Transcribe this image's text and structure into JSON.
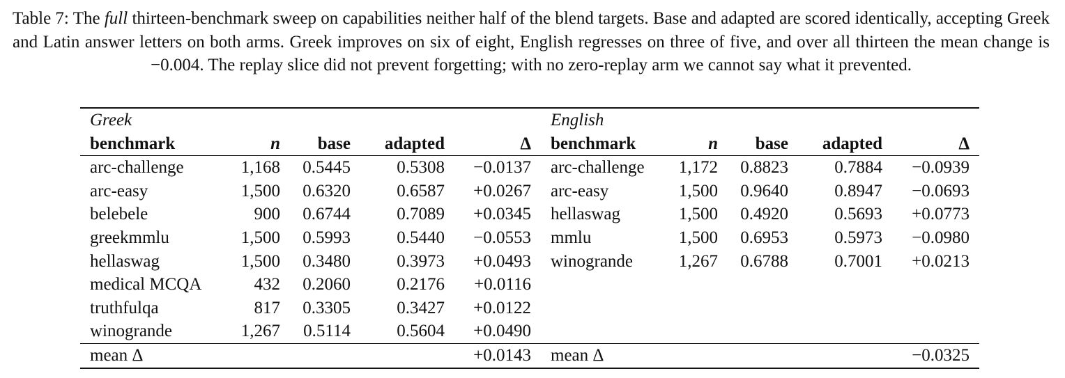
{
  "caption": {
    "before": "Table 7: The ",
    "emph": "full",
    "after": " thirteen-benchmark sweep on capabilities neither half of the blend targets. Base and adapted are scored identically, accepting Greek and Latin answer letters on both arms. Greek improves on six of eight, English regresses on three of five, and over all thirteen the mean change is −0.004. The replay slice did not prevent forgetting; with no zero-replay arm we cannot say what it prevented."
  },
  "table": {
    "greek": {
      "label": "Greek",
      "headers": [
        "benchmark",
        "n",
        "base",
        "adapted",
        "Δ"
      ],
      "rows": [
        [
          "arc-challenge",
          "1,168",
          "0.5445",
          "0.5308",
          "−0.0137"
        ],
        [
          "arc-easy",
          "1,500",
          "0.6320",
          "0.6587",
          "+0.0267"
        ],
        [
          "belebele",
          "900",
          "0.6744",
          "0.7089",
          "+0.0345"
        ],
        [
          "greekmmlu",
          "1,500",
          "0.5993",
          "0.5440",
          "−0.0553"
        ],
        [
          "hellaswag",
          "1,500",
          "0.3480",
          "0.3973",
          "+0.0493"
        ],
        [
          "medical MCQA",
          "432",
          "0.2060",
          "0.2176",
          "+0.0116"
        ],
        [
          "truthfulqa",
          "817",
          "0.3305",
          "0.3427",
          "+0.0122"
        ],
        [
          "winogrande",
          "1,267",
          "0.5114",
          "0.5604",
          "+0.0490"
        ]
      ],
      "mean_label": "mean Δ",
      "mean": "+0.0143"
    },
    "english": {
      "label": "English",
      "headers": [
        "benchmark",
        "n",
        "base",
        "adapted",
        "Δ"
      ],
      "rows": [
        [
          "arc-challenge",
          "1,172",
          "0.8823",
          "0.7884",
          "−0.0939"
        ],
        [
          "arc-easy",
          "1,500",
          "0.9640",
          "0.8947",
          "−0.0693"
        ],
        [
          "hellaswag",
          "1,500",
          "0.4920",
          "0.5693",
          "+0.0773"
        ],
        [
          "mmlu",
          "1,500",
          "0.6953",
          "0.5973",
          "−0.0980"
        ],
        [
          "winogrande",
          "1,267",
          "0.6788",
          "0.7001",
          "+0.0213"
        ]
      ],
      "mean_label": "mean Δ",
      "mean": "−0.0325"
    }
  }
}
